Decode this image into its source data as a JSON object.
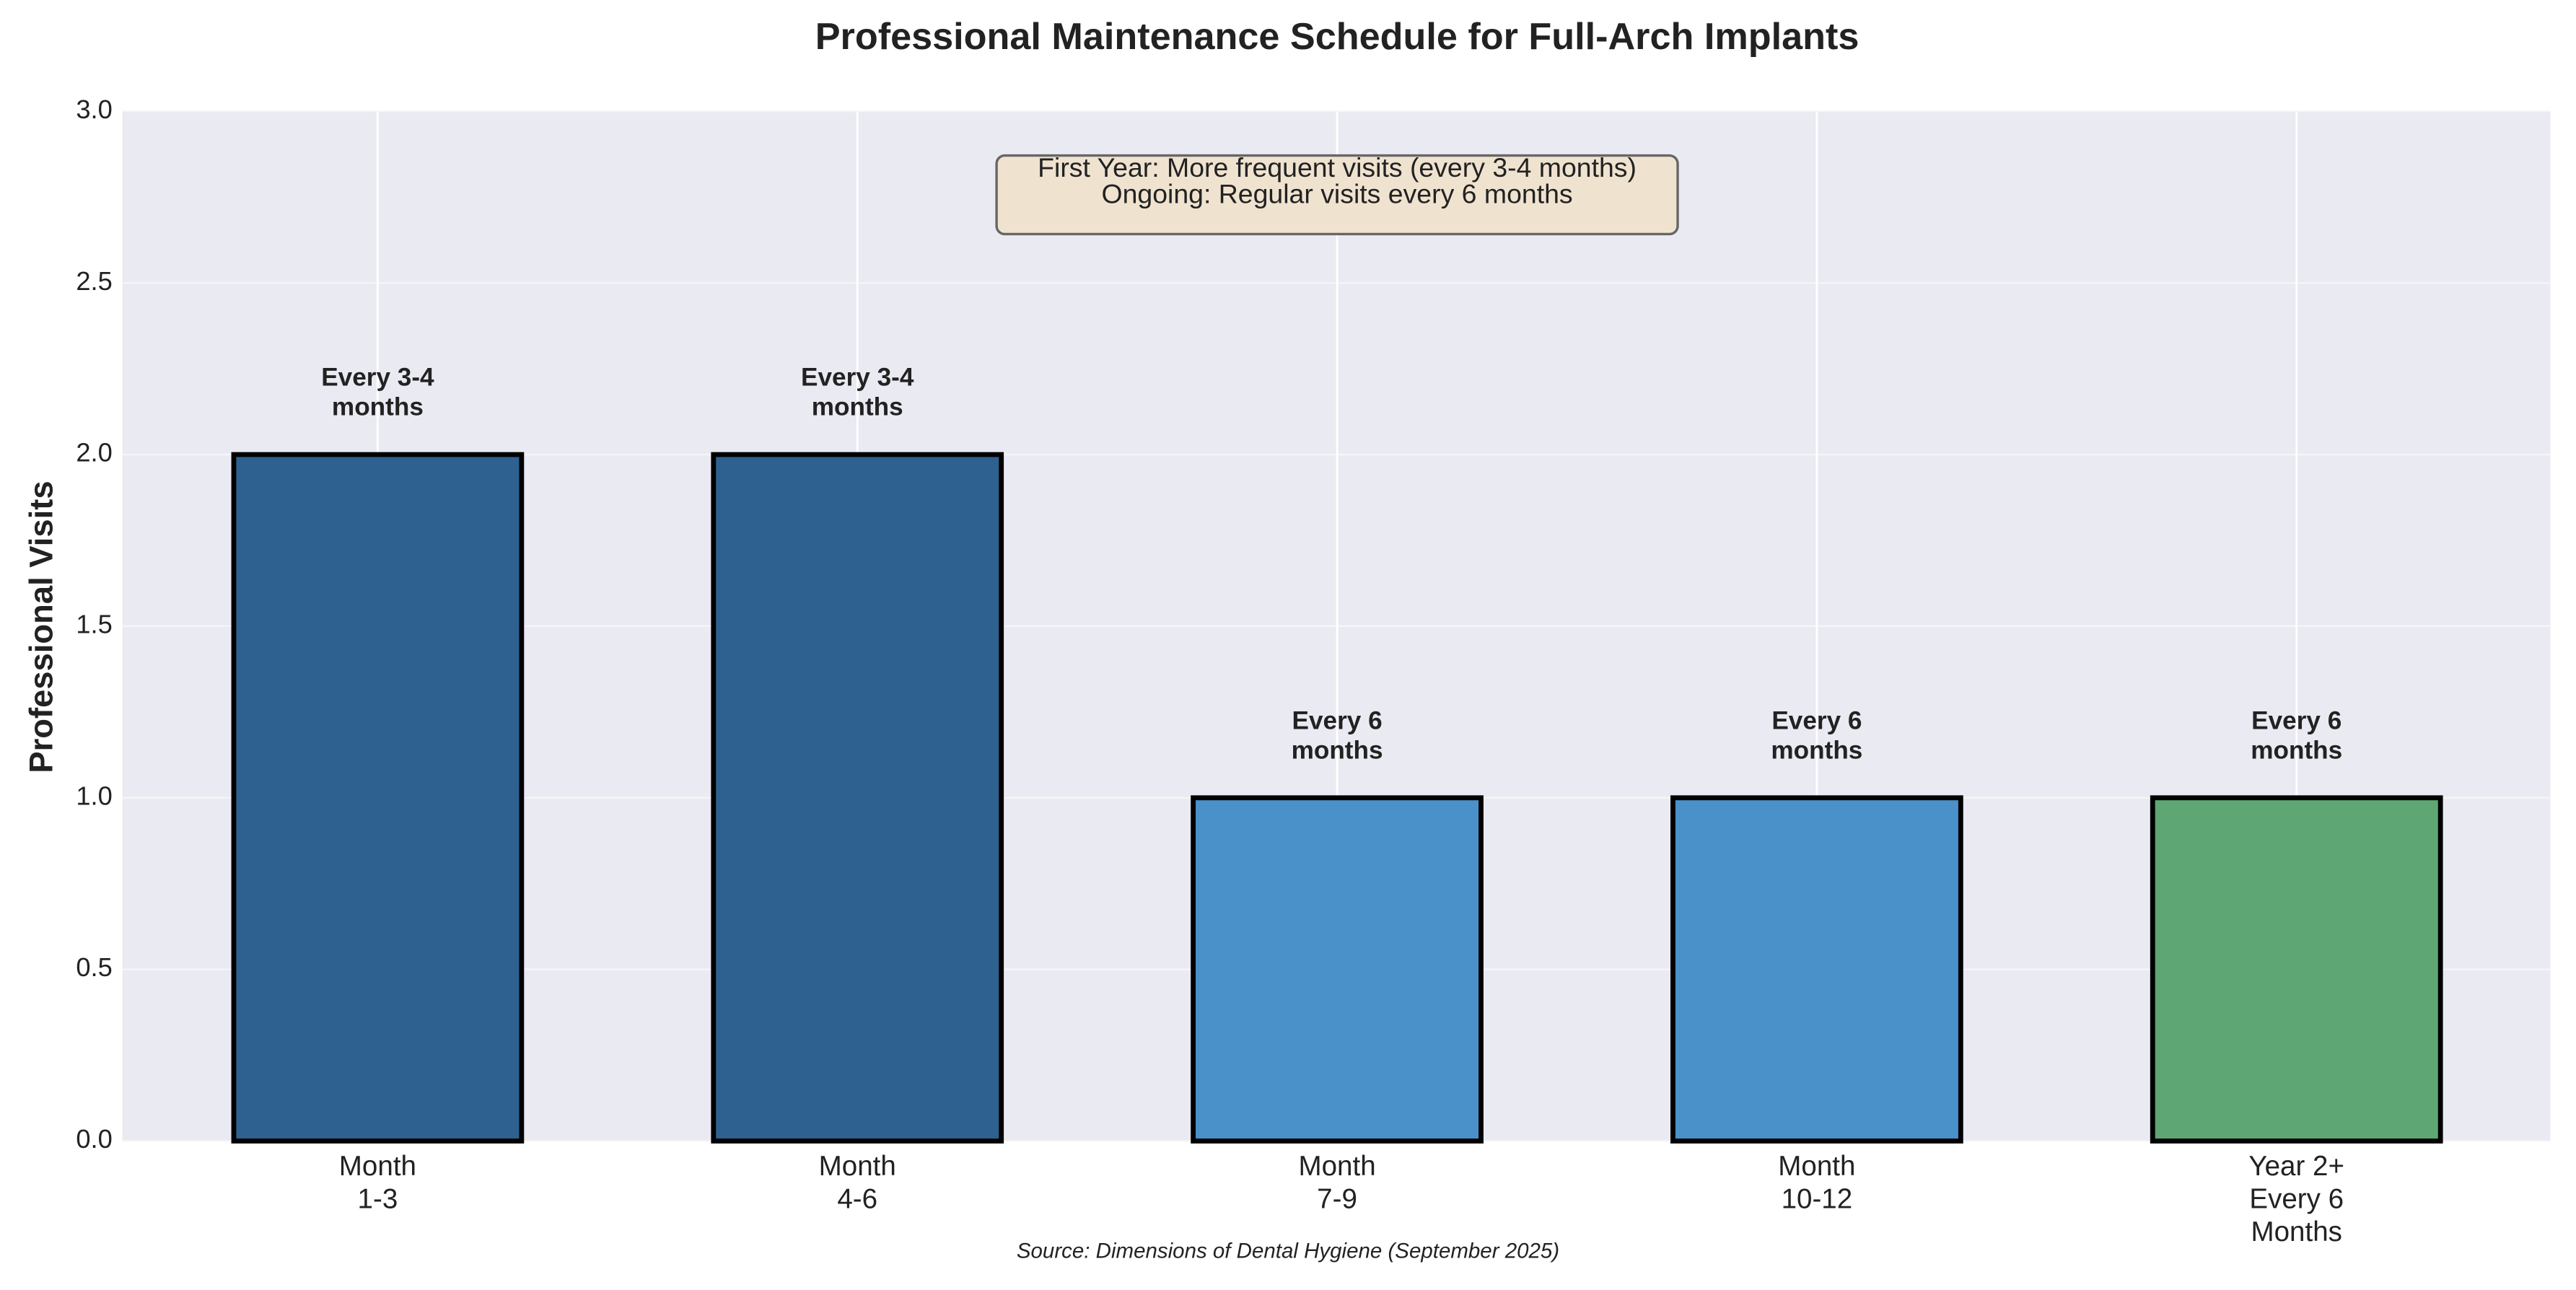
{
  "chart_data": {
    "type": "bar",
    "title": "Professional Maintenance Schedule for Full-Arch Implants",
    "y_label": "Professional Visits",
    "categories": [
      "Month\n1-3",
      "Month\n4-6",
      "Month\n7-9",
      "Month\n10-12",
      "Year 2+\nEvery 6\nMonths"
    ],
    "values": [
      2,
      2,
      1,
      1,
      1
    ],
    "value_labels": [
      "Every 3-4\nmonths",
      "Every 3-4\nmonths",
      "Every 6\nmonths",
      "Every 6\nmonths",
      "Every 6\nmonths"
    ],
    "colors": [
      "#2e6090",
      "#2e6090",
      "#4a90c9",
      "#4a90c9",
      "#5fa675"
    ],
    "ylim": [
      0,
      3
    ],
    "yticks": [
      {
        "value": 0,
        "label": "0.0"
      },
      {
        "value": 0.5,
        "label": "0.5"
      },
      {
        "value": 1,
        "label": "1.0"
      },
      {
        "value": 1.5,
        "label": "1.5"
      },
      {
        "value": 2,
        "label": "2.0"
      },
      {
        "value": 2.5,
        "label": "2.5"
      },
      {
        "value": 3,
        "label": "3.0"
      }
    ],
    "grid": true,
    "annotation": "First Year: More frequent visits (every 3-4 months)\nOngoing: Regular visits every 6 months",
    "source": "Source: Dimensions of Dental Hygiene (September 2025)"
  }
}
